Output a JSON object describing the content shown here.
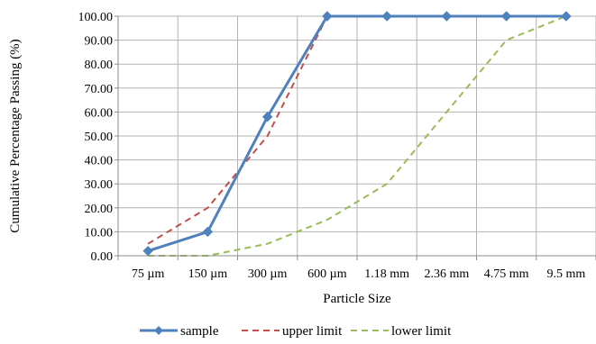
{
  "chart_data": {
    "type": "line",
    "categories": [
      "75 µm",
      "150 µm",
      "300 µm",
      "600 µm",
      "1.18 mm",
      "2.36 mm",
      "4.75 mm",
      "9.5 mm"
    ],
    "xlabel": "Particle Size",
    "ylabel": "Cumulative Percentage Passing (%)",
    "ylim": [
      0,
      100
    ],
    "ytick_step": 10,
    "y_ticks": [
      "0.00",
      "10.00",
      "20.00",
      "30.00",
      "40.00",
      "50.00",
      "60.00",
      "70.00",
      "80.00",
      "90.00",
      "100.00"
    ],
    "grid": "vertical-and-horizontal",
    "legend_position": "bottom",
    "series": [
      {
        "name": "sample",
        "values": [
          2,
          10,
          58,
          100,
          100,
          100,
          100,
          100
        ],
        "color": "#4f81bd",
        "style": "solid",
        "marker": "diamond"
      },
      {
        "name": "upper limit",
        "values": [
          5,
          20,
          50,
          100,
          100,
          100,
          100,
          100
        ],
        "color": "#c0504d",
        "style": "dashed",
        "marker": "none"
      },
      {
        "name": "lower limit",
        "values": [
          0,
          0,
          5,
          15,
          30,
          60,
          90,
          100
        ],
        "color": "#9bbb59",
        "style": "dashed",
        "marker": "none"
      }
    ]
  }
}
